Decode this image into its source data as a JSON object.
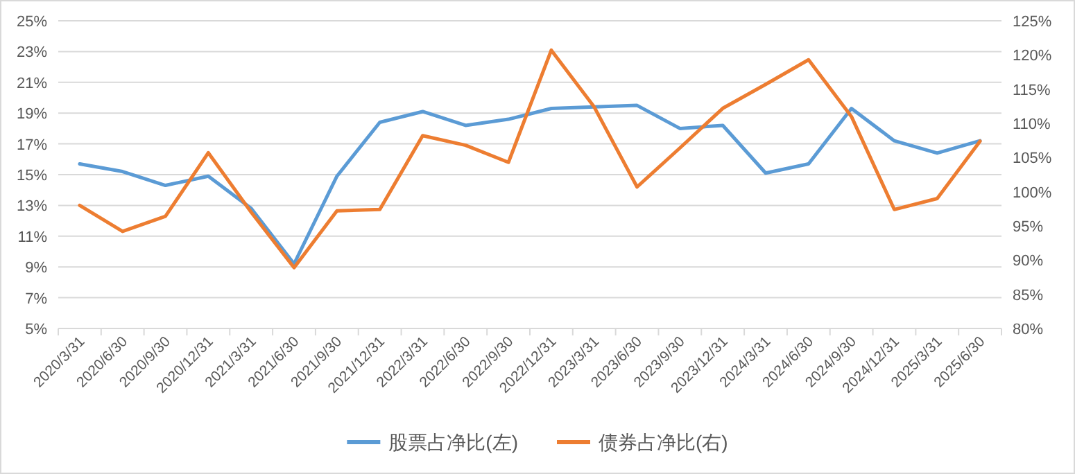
{
  "chart_data": {
    "type": "line",
    "categories": [
      "2020/3/31",
      "2020/6/30",
      "2020/9/30",
      "2020/12/31",
      "2021/3/31",
      "2021/6/30",
      "2021/9/30",
      "2021/12/31",
      "2022/3/31",
      "2022/6/30",
      "2022/9/30",
      "2022/12/31",
      "2023/3/31",
      "2023/6/30",
      "2023/9/30",
      "2023/12/31",
      "2024/3/31",
      "2024/6/30",
      "2024/9/30",
      "2024/12/31",
      "2025/3/31",
      "2025/6/30"
    ],
    "series": [
      {
        "name": "股票占净比(左)",
        "color": "#5b9bd5",
        "values": [
          15.7,
          15.2,
          14.3,
          14.9,
          12.8,
          9.2,
          14.9,
          18.4,
          19.1,
          18.2,
          18.6,
          19.3,
          19.4,
          19.5,
          18.0,
          18.2,
          15.1,
          15.7,
          19.3,
          17.2,
          16.4,
          17.2
        ]
      },
      {
        "name": "债券占净比(右)",
        "color": "#ed7d31",
        "axis": "y2",
        "values": [
          98.0,
          94.2,
          96.4,
          105.7,
          97.0,
          88.9,
          97.2,
          97.4,
          108.2,
          106.8,
          104.3,
          120.7,
          112.4,
          100.7,
          106.4,
          112.2,
          115.7,
          119.3,
          111.0,
          97.4,
          99.0,
          107.4
        ]
      }
    ],
    "ylim": [
      5,
      25
    ],
    "yticks": [
      {
        "value": 5,
        "label": "5%"
      },
      {
        "value": 7,
        "label": "7%"
      },
      {
        "value": 9,
        "label": "9%"
      },
      {
        "value": 11,
        "label": "11%"
      },
      {
        "value": 13,
        "label": "13%"
      },
      {
        "value": 15,
        "label": "15%"
      },
      {
        "value": 17,
        "label": "17%"
      },
      {
        "value": 19,
        "label": "19%"
      },
      {
        "value": 21,
        "label": "21%"
      },
      {
        "value": 23,
        "label": "23%"
      },
      {
        "value": 25,
        "label": "25%"
      }
    ],
    "y2lim": [
      80,
      125
    ],
    "y2ticks": [
      {
        "value": 80,
        "label": "80%"
      },
      {
        "value": 85,
        "label": "85%"
      },
      {
        "value": 90,
        "label": "90%"
      },
      {
        "value": 95,
        "label": "95%"
      },
      {
        "value": 100,
        "label": "100%"
      },
      {
        "value": 105,
        "label": "105%"
      },
      {
        "value": 110,
        "label": "110%"
      },
      {
        "value": 115,
        "label": "115%"
      },
      {
        "value": 120,
        "label": "120%"
      },
      {
        "value": 125,
        "label": "125%"
      }
    ],
    "grid": "y",
    "legend": "bottom",
    "marker": "none",
    "line_style": "solid"
  }
}
